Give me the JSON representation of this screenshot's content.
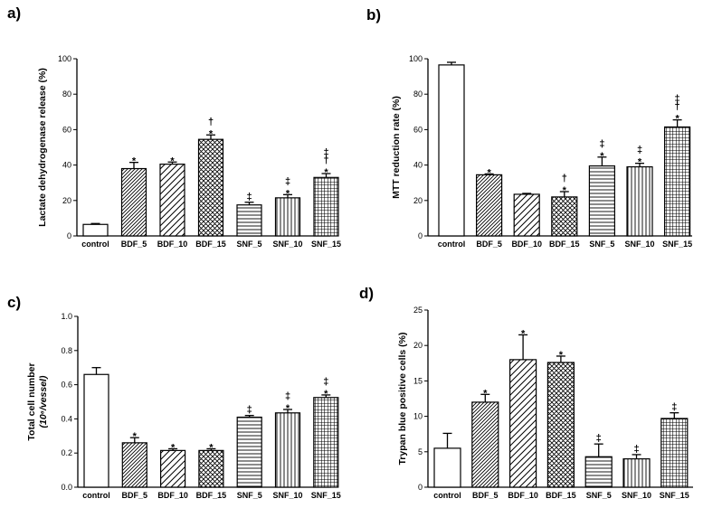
{
  "chart_data": [
    {
      "panel": "a)",
      "type": "bar",
      "ylabel": "Lactate dehydrogenase release (%)",
      "ylim": [
        0,
        100
      ],
      "yticks": [
        "0",
        "20",
        "40",
        "60",
        "80",
        "100"
      ],
      "categories": [
        "control",
        "BDF_5",
        "BDF_10",
        "BDF_15",
        "SNF_5",
        "SNF_10",
        "SNF_15"
      ],
      "values": [
        6.5,
        38,
        40.5,
        54.5,
        17.5,
        21.5,
        33
      ],
      "errors": [
        0.5,
        3.5,
        1.2,
        2.5,
        1.5,
        1.8,
        2.2
      ],
      "annotations": [
        [],
        [
          "*"
        ],
        [
          "*"
        ],
        [
          "†",
          "*"
        ],
        [
          "‡"
        ],
        [
          "‡",
          "*"
        ],
        [
          "‡",
          "†",
          "*"
        ]
      ]
    },
    {
      "panel": "b)",
      "type": "bar",
      "ylabel": "MTT reduction rate (%)",
      "ylim": [
        0,
        100
      ],
      "yticks": [
        "0",
        "20",
        "40",
        "60",
        "80",
        "100"
      ],
      "categories": [
        "control",
        "BDF_5",
        "BDF_10",
        "BDF_15",
        "SNF_5",
        "SNF_10",
        "SNF_15"
      ],
      "values": [
        96.5,
        34.5,
        23.5,
        22,
        39.5,
        39,
        61.5
      ],
      "errors": [
        1.5,
        0.5,
        0.5,
        3,
        5,
        2,
        4
      ],
      "annotations": [
        [],
        [
          "*"
        ],
        [],
        [
          "†",
          "*"
        ],
        [
          "‡",
          "*"
        ],
        [
          "‡",
          "*"
        ],
        [
          "‡",
          "†",
          "*"
        ]
      ]
    },
    {
      "panel": "c)",
      "type": "bar",
      "ylabel": "Total cell number",
      "ylabel_unit": "(10⁶/vessel)",
      "ylim": [
        0,
        1.0
      ],
      "yticks": [
        "0.0",
        "0.2",
        "0.4",
        "0.6",
        "0.8",
        "1.0"
      ],
      "categories": [
        "control",
        "BDF_5",
        "BDF_10",
        "BDF_15",
        "SNF_5",
        "SNF_10",
        "SNF_15"
      ],
      "values": [
        0.66,
        0.26,
        0.215,
        0.215,
        0.41,
        0.435,
        0.525
      ],
      "errors": [
        0.04,
        0.03,
        0.01,
        0.01,
        0.01,
        0.02,
        0.015
      ],
      "annotations": [
        [],
        [
          "*"
        ],
        [
          "*"
        ],
        [
          "*"
        ],
        [
          "‡"
        ],
        [
          "‡",
          "*"
        ],
        [
          "‡",
          "*"
        ]
      ]
    },
    {
      "panel": "d)",
      "type": "bar",
      "ylabel": "Trypan blue positive cells  (%)",
      "ylim": [
        0,
        25
      ],
      "yticks": [
        "0",
        "5",
        "10",
        "15",
        "20",
        "25"
      ],
      "categories": [
        "control",
        "BDF_5",
        "BDF_10",
        "BDF_15",
        "SNF_5",
        "SNF_10",
        "SNF_15"
      ],
      "values": [
        5.5,
        12,
        18,
        17.6,
        4.3,
        4,
        9.7
      ],
      "errors": [
        2.1,
        1.1,
        3.5,
        0.9,
        1.8,
        0.6,
        0.8
      ],
      "annotations": [
        [],
        [
          "*"
        ],
        [
          "*"
        ],
        [
          "*"
        ],
        [
          "‡"
        ],
        [
          "‡"
        ],
        [
          "‡"
        ]
      ]
    }
  ]
}
